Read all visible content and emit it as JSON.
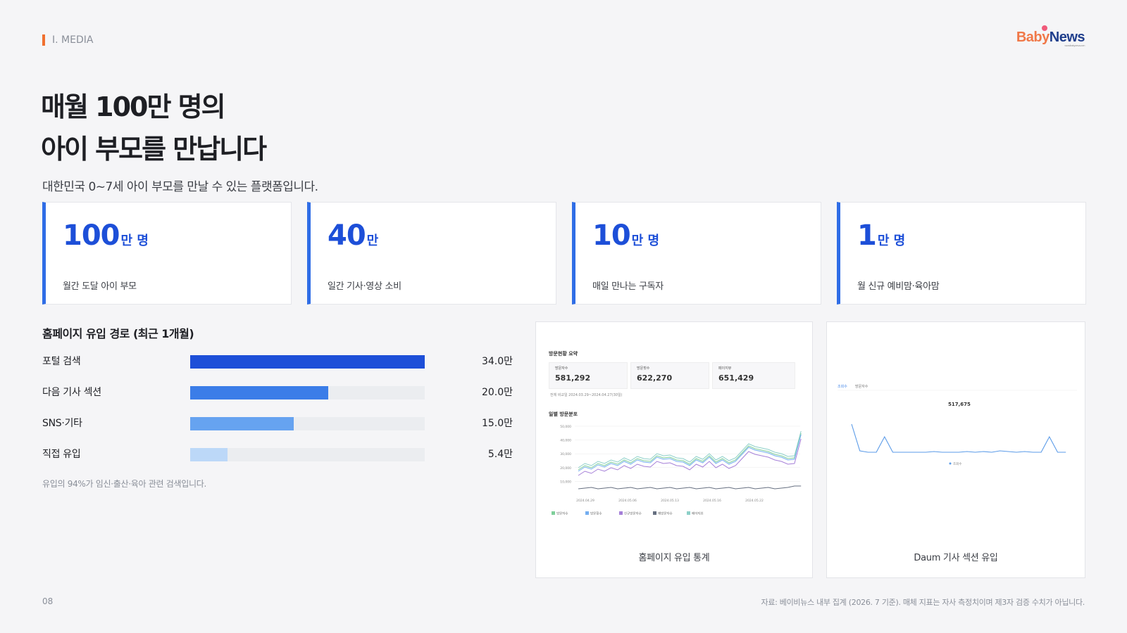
{
  "header": {
    "section": "I. MEDIA",
    "logo": {
      "baby": "Baby",
      "news": "News",
      "domain": "www.ibabynews.com"
    }
  },
  "title": {
    "line1": "매월 100만 명의",
    "line2": "아이 부모를 만납니다"
  },
  "subtitle": "대한민국 0~7세 아이 부모를 만날 수 있는 플랫폼입니다.",
  "stats": [
    {
      "num": "100",
      "unit": "만 명",
      "label": "월간 도달 아이 부모"
    },
    {
      "num": "40",
      "unit": "만",
      "label": "일간 기사·영상 소비"
    },
    {
      "num": "10",
      "unit": "만 명",
      "label": "매일 만나는 구독자"
    },
    {
      "num": "1",
      "unit": "만 명",
      "label": "월 신규 예비맘·육아맘"
    }
  ],
  "inflow": {
    "title": "홈페이지 유입 경로 (최근 1개월)",
    "rows": [
      {
        "label": "포털 검색",
        "value": 34.0,
        "display": "34.0만",
        "color": "#1d4fd8"
      },
      {
        "label": "다음 기사 섹션",
        "value": 20.0,
        "display": "20.0만",
        "color": "#3b7de8"
      },
      {
        "label": "SNS·기타",
        "value": 15.0,
        "display": "15.0만",
        "color": "#66a3f0"
      },
      {
        "label": "직접 유입",
        "value": 5.4,
        "display": "5.4만",
        "color": "#bcd8f8"
      }
    ],
    "max": 34.0,
    "note": "유입의 94%가 임신·출산·육아 관련 검색입니다."
  },
  "screenshot1": {
    "caption": "홈페이지 유입 통계",
    "summary_title": "방문현황 요약",
    "boxes": [
      {
        "key": "방문자수",
        "value": "581,292"
      },
      {
        "key": "방문횟수",
        "value": "622,270"
      },
      {
        "key": "페이지뷰",
        "value": "651,429"
      }
    ],
    "period": "전체 비교일  2024.03.29~2024.04.27(30일)",
    "chart_title": "일별 방문분포",
    "y_ticks": [
      "50,000",
      "40,000",
      "30,000",
      "20,000",
      "10,000"
    ],
    "x_ticks": [
      "2024.04.29",
      "2024.05.06",
      "2024.05.13",
      "2024.05.16",
      "2024.05.22"
    ],
    "legend": [
      "방문자수",
      "방문횟수",
      "신규방문자수",
      "재방문자수",
      "페이지뷰"
    ],
    "series_colors": [
      "#7fcf9a",
      "#74aef0",
      "#a57fd8",
      "#666f80",
      "#8dd0c8"
    ]
  },
  "screenshot2": {
    "caption": "Daum 기사 섹션 유입",
    "tabs": [
      "조회수",
      "방문자수"
    ],
    "peak": "517,675",
    "legend": "조회수",
    "line_color": "#5b9be8"
  },
  "footer": {
    "page": "08",
    "source": "자료: 베이비뉴스 내부 집계 (2026. 7 기준). 매체 지표는 자사 측정치이며 제3자 검증 수치가 아닙니다."
  }
}
